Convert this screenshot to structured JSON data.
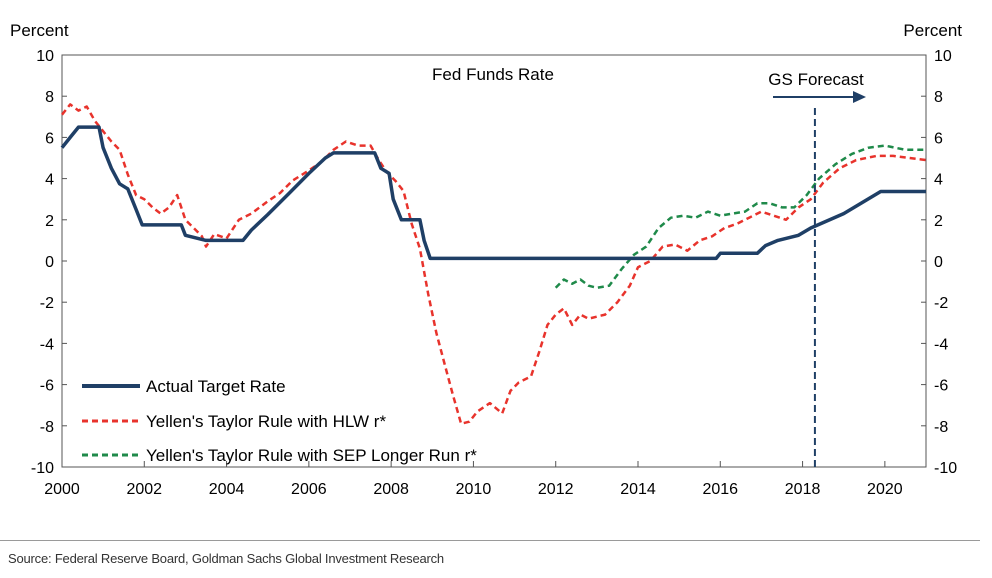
{
  "chart_data": {
    "type": "line",
    "title": "Fed Funds Rate",
    "ylabel_left": "Percent",
    "ylabel_right": "Percent",
    "xlim": [
      2000,
      2021
    ],
    "ylim": [
      -10,
      10
    ],
    "x_ticks": [
      2000,
      2002,
      2004,
      2006,
      2008,
      2010,
      2012,
      2014,
      2016,
      2018,
      2020
    ],
    "y_ticks": [
      10,
      8,
      6,
      4,
      2,
      0,
      -2,
      -4,
      -6,
      -8,
      -10
    ],
    "grid": false,
    "legend_position": "bottom-left",
    "forecast": {
      "label": "GS Forecast",
      "x": 2018.3
    },
    "series": [
      {
        "name": "Actual Target Rate",
        "color": "#1f3f66",
        "style": "solid",
        "points": [
          [
            2000.0,
            5.5
          ],
          [
            2000.2,
            6.0
          ],
          [
            2000.4,
            6.5
          ],
          [
            2000.9,
            6.5
          ],
          [
            2001.0,
            5.5
          ],
          [
            2001.2,
            4.5
          ],
          [
            2001.4,
            3.75
          ],
          [
            2001.6,
            3.5
          ],
          [
            2001.8,
            2.5
          ],
          [
            2001.95,
            1.75
          ],
          [
            2002.9,
            1.75
          ],
          [
            2003.0,
            1.25
          ],
          [
            2003.5,
            1.0
          ],
          [
            2004.4,
            1.0
          ],
          [
            2004.6,
            1.5
          ],
          [
            2005.0,
            2.25
          ],
          [
            2005.5,
            3.25
          ],
          [
            2006.0,
            4.25
          ],
          [
            2006.4,
            5.0
          ],
          [
            2006.6,
            5.25
          ],
          [
            2007.6,
            5.25
          ],
          [
            2007.75,
            4.5
          ],
          [
            2007.95,
            4.25
          ],
          [
            2008.05,
            3.0
          ],
          [
            2008.25,
            2.0
          ],
          [
            2008.7,
            2.0
          ],
          [
            2008.8,
            1.0
          ],
          [
            2008.95,
            0.125
          ],
          [
            2015.9,
            0.125
          ],
          [
            2016.0,
            0.375
          ],
          [
            2016.9,
            0.375
          ],
          [
            2017.1,
            0.75
          ],
          [
            2017.4,
            1.0
          ],
          [
            2017.9,
            1.25
          ],
          [
            2018.2,
            1.6
          ],
          [
            2019.0,
            2.3
          ],
          [
            2019.9,
            3.375
          ],
          [
            2021.0,
            3.375
          ]
        ]
      },
      {
        "name": "Yellen's Taylor Rule with HLW r*",
        "color": "#e8332c",
        "style": "dashed",
        "points": [
          [
            2000.0,
            7.1
          ],
          [
            2000.2,
            7.6
          ],
          [
            2000.4,
            7.3
          ],
          [
            2000.6,
            7.5
          ],
          [
            2000.8,
            6.8
          ],
          [
            2001.0,
            6.3
          ],
          [
            2001.2,
            5.8
          ],
          [
            2001.4,
            5.4
          ],
          [
            2001.6,
            4.2
          ],
          [
            2001.8,
            3.2
          ],
          [
            2002.0,
            3.0
          ],
          [
            2002.2,
            2.6
          ],
          [
            2002.4,
            2.3
          ],
          [
            2002.6,
            2.6
          ],
          [
            2002.8,
            3.2
          ],
          [
            2003.0,
            2.0
          ],
          [
            2003.2,
            1.6
          ],
          [
            2003.4,
            1.2
          ],
          [
            2003.5,
            0.7
          ],
          [
            2003.7,
            1.3
          ],
          [
            2004.0,
            1.1
          ],
          [
            2004.3,
            2.0
          ],
          [
            2004.6,
            2.3
          ],
          [
            2005.0,
            2.9
          ],
          [
            2005.3,
            3.3
          ],
          [
            2005.6,
            3.9
          ],
          [
            2006.0,
            4.4
          ],
          [
            2006.3,
            4.8
          ],
          [
            2006.6,
            5.4
          ],
          [
            2006.9,
            5.8
          ],
          [
            2007.2,
            5.6
          ],
          [
            2007.5,
            5.6
          ],
          [
            2007.7,
            4.9
          ],
          [
            2007.9,
            4.3
          ],
          [
            2008.1,
            3.9
          ],
          [
            2008.3,
            3.4
          ],
          [
            2008.5,
            1.8
          ],
          [
            2008.7,
            0.6
          ],
          [
            2008.9,
            -1.6
          ],
          [
            2009.1,
            -3.5
          ],
          [
            2009.3,
            -5.0
          ],
          [
            2009.5,
            -6.5
          ],
          [
            2009.7,
            -7.9
          ],
          [
            2009.9,
            -7.8
          ],
          [
            2010.1,
            -7.3
          ],
          [
            2010.4,
            -6.9
          ],
          [
            2010.7,
            -7.4
          ],
          [
            2010.9,
            -6.3
          ],
          [
            2011.1,
            -5.9
          ],
          [
            2011.4,
            -5.6
          ],
          [
            2011.6,
            -4.4
          ],
          [
            2011.8,
            -3.1
          ],
          [
            2012.0,
            -2.6
          ],
          [
            2012.2,
            -2.3
          ],
          [
            2012.4,
            -3.1
          ],
          [
            2012.6,
            -2.6
          ],
          [
            2012.8,
            -2.8
          ],
          [
            2013.0,
            -2.7
          ],
          [
            2013.2,
            -2.6
          ],
          [
            2013.5,
            -2.0
          ],
          [
            2013.8,
            -1.2
          ],
          [
            2014.0,
            -0.3
          ],
          [
            2014.3,
            0.0
          ],
          [
            2014.6,
            0.7
          ],
          [
            2014.9,
            0.8
          ],
          [
            2015.2,
            0.5
          ],
          [
            2015.5,
            1.0
          ],
          [
            2015.8,
            1.2
          ],
          [
            2016.1,
            1.6
          ],
          [
            2016.4,
            1.8
          ],
          [
            2016.7,
            2.1
          ],
          [
            2017.0,
            2.4
          ],
          [
            2017.3,
            2.2
          ],
          [
            2017.6,
            2.0
          ],
          [
            2017.9,
            2.6
          ],
          [
            2018.2,
            3.0
          ],
          [
            2018.5,
            3.8
          ],
          [
            2018.9,
            4.5
          ],
          [
            2019.3,
            4.9
          ],
          [
            2019.8,
            5.1
          ],
          [
            2020.2,
            5.1
          ],
          [
            2020.6,
            5.0
          ],
          [
            2021.0,
            4.9
          ]
        ]
      },
      {
        "name": "Yellen's Taylor Rule with SEP Longer Run r*",
        "color": "#1f8a4a",
        "style": "dashed",
        "points": [
          [
            2012.0,
            -1.3
          ],
          [
            2012.2,
            -0.9
          ],
          [
            2012.4,
            -1.1
          ],
          [
            2012.6,
            -0.9
          ],
          [
            2012.8,
            -1.2
          ],
          [
            2013.0,
            -1.3
          ],
          [
            2013.3,
            -1.2
          ],
          [
            2013.6,
            -0.4
          ],
          [
            2013.9,
            0.3
          ],
          [
            2014.2,
            0.7
          ],
          [
            2014.5,
            1.6
          ],
          [
            2014.8,
            2.1
          ],
          [
            2015.1,
            2.2
          ],
          [
            2015.4,
            2.1
          ],
          [
            2015.7,
            2.4
          ],
          [
            2016.0,
            2.2
          ],
          [
            2016.3,
            2.3
          ],
          [
            2016.6,
            2.4
          ],
          [
            2016.9,
            2.8
          ],
          [
            2017.2,
            2.8
          ],
          [
            2017.5,
            2.6
          ],
          [
            2017.8,
            2.6
          ],
          [
            2018.1,
            3.2
          ],
          [
            2018.4,
            4.0
          ],
          [
            2018.8,
            4.7
          ],
          [
            2019.2,
            5.2
          ],
          [
            2019.6,
            5.5
          ],
          [
            2020.0,
            5.6
          ],
          [
            2020.5,
            5.4
          ],
          [
            2021.0,
            5.4
          ]
        ]
      }
    ]
  },
  "footer": {
    "source": "Source: Federal Reserve Board, Goldman Sachs Global Investment Research"
  }
}
